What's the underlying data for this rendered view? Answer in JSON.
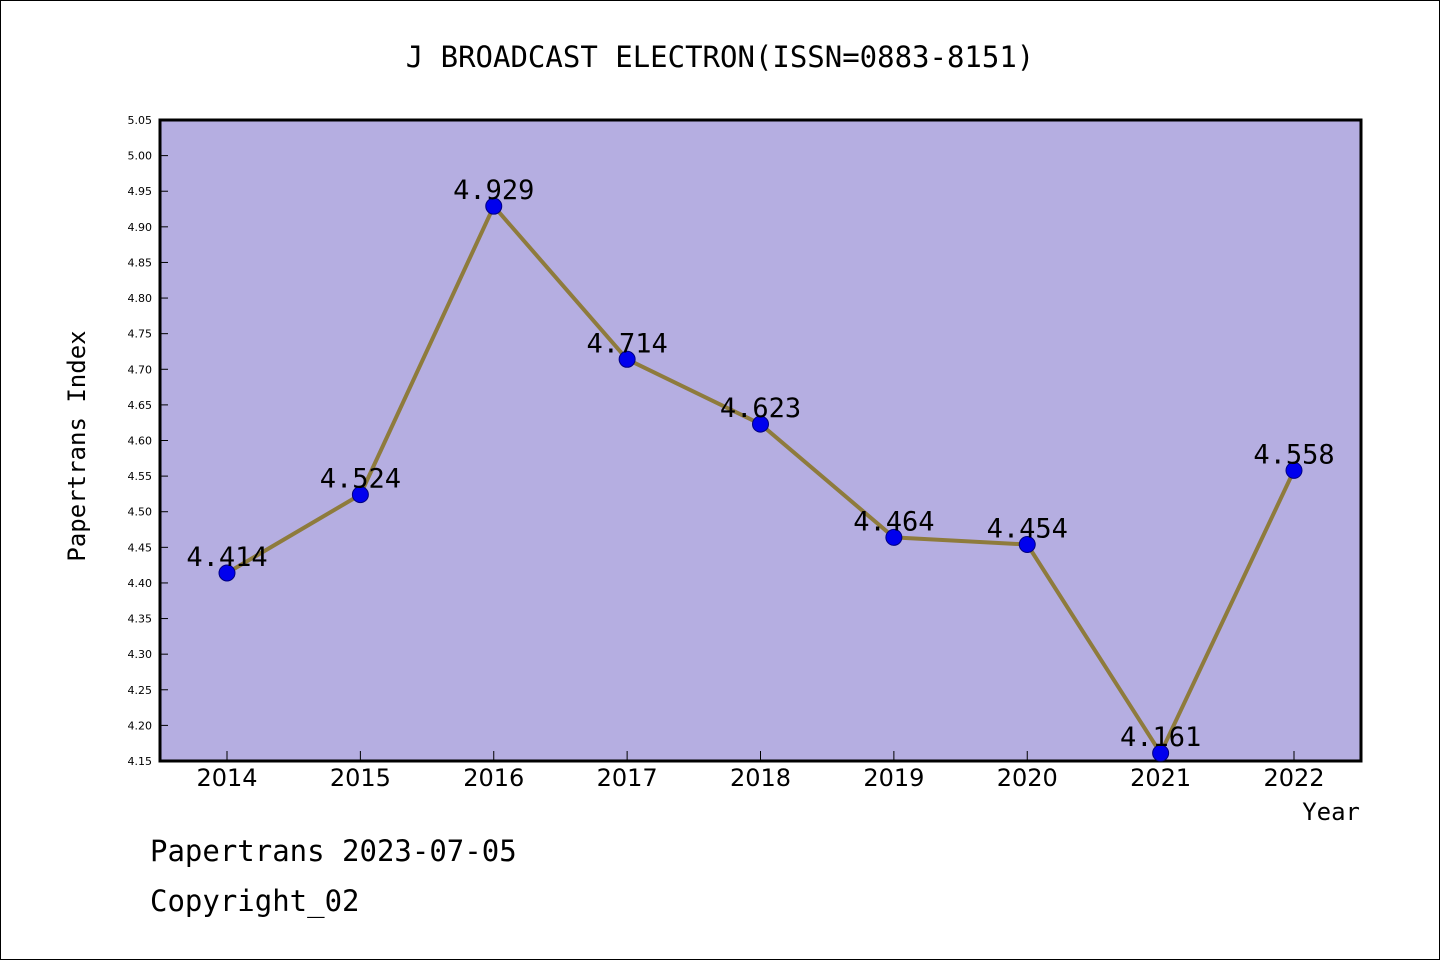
{
  "chart_data": {
    "type": "line",
    "title": "J BROADCAST ELECTRON(ISSN=0883-8151)",
    "xlabel": "Year",
    "ylabel": "Papertrans Index",
    "categories": [
      "2014",
      "2015",
      "2016",
      "2017",
      "2018",
      "2019",
      "2020",
      "2021",
      "2022"
    ],
    "values": [
      4.414,
      4.524,
      4.929,
      4.714,
      4.623,
      4.464,
      4.454,
      4.161,
      4.558
    ],
    "data_labels": [
      "4.414",
      "4.524",
      "4.929",
      "4.714",
      "4.623",
      "4.464",
      "4.454",
      "4.161",
      "4.558"
    ],
    "ylim": [
      4.15,
      5.05
    ],
    "yticks": [
      "4.15",
      "4.20",
      "4.25",
      "4.30",
      "4.35",
      "4.40",
      "4.45",
      "4.50",
      "4.55",
      "4.60",
      "4.65",
      "4.70",
      "4.75",
      "4.80",
      "4.85",
      "4.90",
      "4.95",
      "5.00",
      "5.05"
    ],
    "grid": false,
    "colors": {
      "plot_background": "#b5aee1",
      "line": "#8e7b3c",
      "marker": "#0000ee",
      "marker_edge": "#000080"
    }
  },
  "footer": {
    "date": "Papertrans 2023-07-05",
    "copyright": "Copyright_02"
  }
}
